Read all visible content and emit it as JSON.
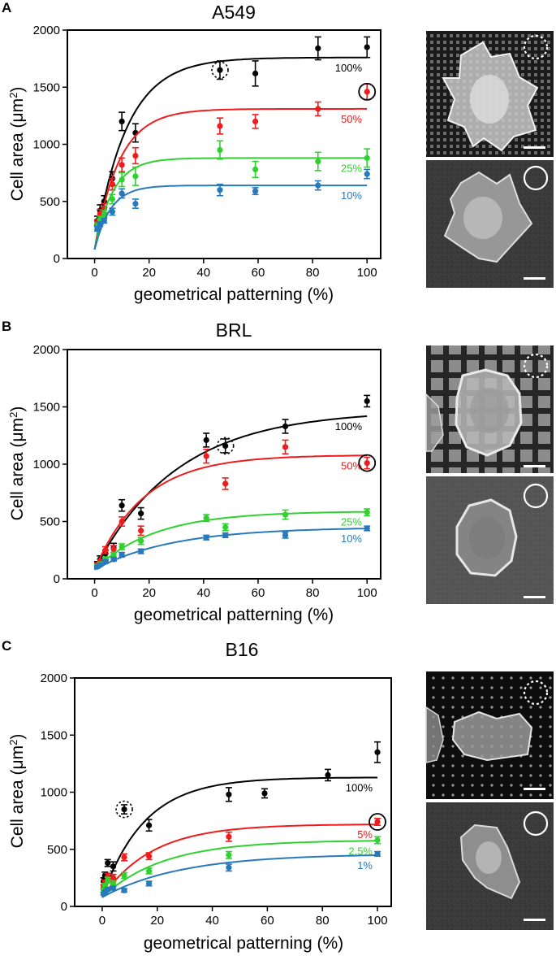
{
  "figure": {
    "colors": {
      "black": "#000000",
      "red": "#ee1c1c",
      "green": "#2fd12f",
      "blue": "#2878bc"
    }
  },
  "chart_data": [
    {
      "panel": "A",
      "type": "scatter",
      "title": "A549",
      "xlabel": "geometrical patterning (%)",
      "ylabel": "Cell area (μm²)",
      "xlim": [
        -10,
        105
      ],
      "ylim": [
        0,
        2000
      ],
      "xticks": [
        0,
        20,
        40,
        60,
        80,
        100
      ],
      "yticks": [
        0,
        500,
        1000,
        1500,
        2000
      ],
      "grid": false,
      "legend": "none",
      "series": [
        {
          "name": "100%",
          "color": "#000000",
          "x": [
            1,
            2,
            3.5,
            6.5,
            10,
            15,
            46,
            59,
            82,
            100
          ],
          "y": [
            330,
            420,
            500,
            700,
            1200,
            1100,
            1650,
            1620,
            1840,
            1850
          ],
          "err": [
            40,
            50,
            50,
            60,
            80,
            80,
            80,
            110,
            100,
            90
          ],
          "fit": {
            "xmax": 100,
            "ymax": 1760,
            "k": 0.085
          }
        },
        {
          "name": "50%",
          "color": "#ee1c1c",
          "x": [
            1,
            2,
            3.5,
            6.5,
            10,
            15,
            46,
            59,
            82,
            100
          ],
          "y": [
            310,
            390,
            440,
            650,
            820,
            900,
            1160,
            1200,
            1310,
            1460
          ],
          "err": [
            30,
            40,
            40,
            50,
            60,
            70,
            70,
            60,
            60,
            70
          ],
          "fit": {
            "xmax": 100,
            "ymax": 1310,
            "k": 0.11
          }
        },
        {
          "name": "25%",
          "color": "#2fd12f",
          "x": [
            1,
            2,
            3.5,
            6.5,
            10,
            15,
            46,
            59,
            82,
            100
          ],
          "y": [
            280,
            340,
            390,
            520,
            690,
            720,
            950,
            780,
            850,
            880
          ],
          "err": [
            30,
            30,
            30,
            40,
            60,
            80,
            80,
            70,
            80,
            80
          ],
          "fit": {
            "xmax": 100,
            "ymax": 880,
            "k": 0.15
          }
        },
        {
          "name": "10%",
          "color": "#2878bc",
          "x": [
            1,
            2,
            3.5,
            6.5,
            10,
            15,
            46,
            59,
            82,
            100
          ],
          "y": [
            260,
            300,
            330,
            410,
            570,
            480,
            600,
            590,
            640,
            740
          ],
          "err": [
            20,
            20,
            20,
            30,
            40,
            40,
            50,
            30,
            40,
            40
          ],
          "fit": {
            "xmax": 100,
            "ymax": 640,
            "k": 0.17
          }
        }
      ]
    },
    {
      "panel": "B",
      "type": "scatter",
      "title": "BRL",
      "xlabel": "geometrical patterning (%)",
      "ylabel": "Cell area (μm²)",
      "xlim": [
        -10,
        105
      ],
      "ylim": [
        0,
        2000
      ],
      "xticks": [
        0,
        20,
        40,
        60,
        80,
        100
      ],
      "yticks": [
        0,
        500,
        1000,
        1500,
        2000
      ],
      "grid": false,
      "legend": "none",
      "series": [
        {
          "name": "100%",
          "color": "#000000",
          "x": [
            1,
            2,
            4,
            7,
            10,
            17,
            41,
            48,
            70,
            100
          ],
          "y": [
            130,
            170,
            220,
            270,
            640,
            570,
            1210,
            1160,
            1330,
            1550
          ],
          "err": [
            20,
            30,
            30,
            40,
            50,
            50,
            60,
            60,
            60,
            50
          ],
          "fit": {
            "xmax": 100,
            "ymax": 1470,
            "k": 0.033
          }
        },
        {
          "name": "50%",
          "color": "#ee1c1c",
          "x": [
            1,
            2,
            4,
            7,
            10,
            17,
            41,
            48,
            70,
            100
          ],
          "y": [
            120,
            150,
            250,
            260,
            500,
            420,
            1070,
            830,
            1150,
            1010
          ],
          "err": [
            20,
            20,
            30,
            30,
            40,
            40,
            60,
            50,
            60,
            50
          ],
          "fit": {
            "xmax": 100,
            "ymax": 1080,
            "k": 0.055
          }
        },
        {
          "name": "25%",
          "color": "#2fd12f",
          "x": [
            1,
            2,
            4,
            7,
            10,
            17,
            41,
            48,
            70,
            100
          ],
          "y": [
            110,
            130,
            170,
            210,
            280,
            330,
            530,
            450,
            560,
            580
          ],
          "err": [
            15,
            15,
            20,
            20,
            25,
            30,
            30,
            30,
            40,
            30
          ],
          "fit": {
            "xmax": 100,
            "ymax": 590,
            "k": 0.045
          }
        },
        {
          "name": "10%",
          "color": "#2878bc",
          "x": [
            1,
            2,
            4,
            7,
            10,
            17,
            41,
            48,
            70,
            100
          ],
          "y": [
            105,
            120,
            150,
            170,
            210,
            240,
            360,
            380,
            380,
            440
          ],
          "err": [
            10,
            10,
            15,
            15,
            20,
            20,
            20,
            20,
            25,
            20
          ],
          "fit": {
            "xmax": 100,
            "ymax": 450,
            "k": 0.035
          }
        }
      ]
    },
    {
      "panel": "C",
      "type": "scatter",
      "title": "B16",
      "xlabel": "geometrical patterning (%)",
      "ylabel": "Cell area (μm²)",
      "xlim": [
        -10,
        105
      ],
      "ylim": [
        0,
        2000
      ],
      "xticks": [
        0,
        20,
        40,
        60,
        80,
        100
      ],
      "yticks": [
        0,
        500,
        1000,
        1500,
        2000
      ],
      "grid": false,
      "legend": "none",
      "series": [
        {
          "name": "100%",
          "color": "#000000",
          "x": [
            0.5,
            1,
            2,
            4,
            8,
            17,
            46,
            59,
            82,
            100
          ],
          "y": [
            220,
            270,
            380,
            350,
            850,
            710,
            980,
            990,
            1150,
            1350
          ],
          "err": [
            30,
            30,
            30,
            40,
            40,
            50,
            60,
            40,
            50,
            90
          ],
          "fit": {
            "xmax": 100,
            "ymax": 1130,
            "k": 0.065
          }
        },
        {
          "name": "5%",
          "color": "#ee1c1c",
          "x": [
            0.5,
            1,
            2,
            4,
            8,
            17,
            46,
            100
          ],
          "y": [
            170,
            210,
            260,
            250,
            430,
            440,
            610,
            740
          ],
          "err": [
            20,
            20,
            30,
            30,
            30,
            30,
            40,
            30
          ],
          "fit": {
            "xmax": 100,
            "ymax": 720,
            "k": 0.055
          }
        },
        {
          "name": "2.5%",
          "color": "#2fd12f",
          "x": [
            0.5,
            1,
            2,
            4,
            8,
            17,
            46,
            100
          ],
          "y": [
            140,
            180,
            230,
            200,
            270,
            310,
            450,
            580
          ],
          "err": [
            15,
            20,
            25,
            25,
            25,
            25,
            30,
            30
          ],
          "fit": {
            "xmax": 100,
            "ymax": 580,
            "k": 0.045
          }
        },
        {
          "name": "1%",
          "color": "#2878bc",
          "x": [
            0.5,
            1,
            2,
            4,
            8,
            17,
            46,
            100
          ],
          "y": [
            110,
            130,
            150,
            160,
            140,
            200,
            340,
            460
          ],
          "err": [
            10,
            10,
            15,
            15,
            15,
            20,
            30,
            20
          ],
          "fit": {
            "xmax": 100,
            "ymax": 460,
            "k": 0.035
          }
        }
      ]
    }
  ],
  "panels": [
    {
      "letter": "A",
      "title": "A549",
      "dashed_circle_point": {
        "x": 46,
        "y": 1650
      },
      "solid_circle_point": {
        "x": 100,
        "y": 1460
      }
    },
    {
      "letter": "B",
      "title": "BRL",
      "dashed_circle_point": {
        "x": 48,
        "y": 1160
      },
      "solid_circle_point": {
        "x": 100,
        "y": 1010
      }
    },
    {
      "letter": "C",
      "title": "B16",
      "dashed_circle_point": {
        "x": 8,
        "y": 850
      },
      "solid_circle_point": {
        "x": 100,
        "y": 740
      }
    }
  ],
  "micrographs": [
    {
      "panel": "A",
      "substrate": "patterned",
      "marker": "dashed-circle"
    },
    {
      "panel": "A",
      "substrate": "flat",
      "marker": "solid-circle"
    },
    {
      "panel": "B",
      "substrate": "patterned",
      "marker": "dashed-circle"
    },
    {
      "panel": "B",
      "substrate": "flat",
      "marker": "solid-circle"
    },
    {
      "panel": "C",
      "substrate": "patterned",
      "marker": "dashed-circle"
    },
    {
      "panel": "C",
      "substrate": "flat",
      "marker": "solid-circle"
    }
  ]
}
